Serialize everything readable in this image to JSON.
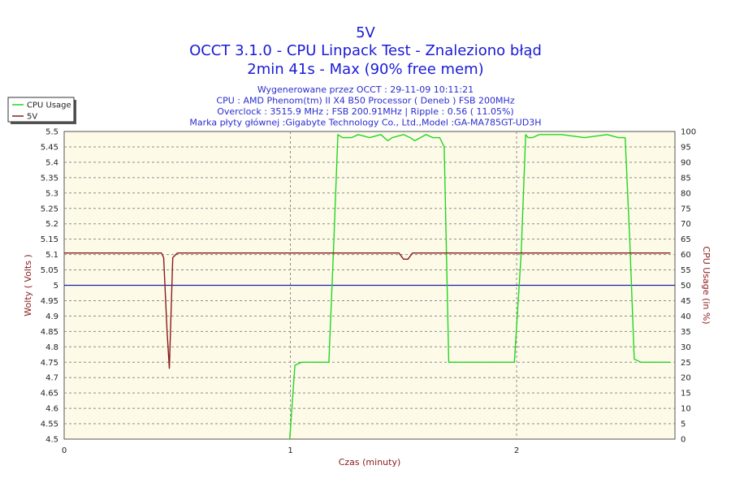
{
  "chart_data": {
    "type": "line",
    "title_lines": [
      "5V",
      "OCCT 3.1.0 - CPU Linpack Test - Znaleziono błąd",
      "2min 41s - Max (90% free mem)"
    ],
    "info_lines": [
      "Wygenerowane przez OCCT : 29-11-09 10:11:21",
      "CPU : AMD Phenom(tm) II X4 B50 Processor ( Deneb ) FSB 200MHz",
      "Overclock : 3515.9 MHz ; FSB 200.91MHz | Ripple : 0.56 ( 11.05%)",
      "Marka płyty głównej :Gigabyte Technology Co., Ltd.,Model :GA-MA785GT-UD3H"
    ],
    "xlabel": "Czas (minuty)",
    "ylabel": "Wolty ( Volts )",
    "y2label": "CPU Usage (in %)",
    "xlim": [
      0,
      2.7
    ],
    "ylim": [
      4.5,
      5.5
    ],
    "y2lim": [
      0,
      100
    ],
    "x_ticks": [
      "0",
      "1",
      "2"
    ],
    "x_tick_values": [
      0,
      1,
      2
    ],
    "y_ticks": [
      "5.5",
      "5.45",
      "5.4",
      "5.35",
      "5.3",
      "5.25",
      "5.2",
      "5.15",
      "5.1",
      "5.05",
      "5",
      "4.95",
      "4.9",
      "4.85",
      "4.8",
      "4.75",
      "4.7",
      "4.65",
      "4.6",
      "4.55",
      "4.5"
    ],
    "y2_ticks": [
      "100",
      "95",
      "90",
      "85",
      "80",
      "75",
      "70",
      "65",
      "60",
      "55",
      "50",
      "45",
      "40",
      "35",
      "30",
      "25",
      "20",
      "15",
      "10",
      "5",
      "0"
    ],
    "reference_line": {
      "y": 5.0,
      "color": "#1f1fb0"
    },
    "grid": true,
    "legend_position": "top-left-outside",
    "legend": [
      {
        "label": "CPU Usage",
        "color": "#22d622"
      },
      {
        "label": "5V",
        "color": "#8b1a1a"
      }
    ],
    "series": [
      {
        "name": "CPU Usage",
        "axis": "right",
        "color": "#22d622",
        "x": [
          0.997,
          1.02,
          1.05,
          1.08,
          1.15,
          1.17,
          1.19,
          1.21,
          1.23,
          1.27,
          1.3,
          1.35,
          1.4,
          1.43,
          1.45,
          1.5,
          1.53,
          1.55,
          1.6,
          1.63,
          1.66,
          1.68,
          1.7,
          1.75,
          1.9,
          1.99,
          2.02,
          2.04,
          2.05,
          2.07,
          2.1,
          2.2,
          2.3,
          2.4,
          2.45,
          2.48,
          2.5,
          2.52,
          2.55,
          2.6,
          2.65,
          2.68
        ],
        "values": [
          0,
          24,
          25,
          25,
          25,
          25,
          60,
          99,
          98,
          98,
          99,
          98,
          99,
          97,
          98,
          99,
          98,
          97,
          99,
          98,
          98,
          95,
          25,
          25,
          25,
          25,
          60,
          99,
          98,
          98,
          99,
          99,
          98,
          99,
          98,
          98,
          65,
          26,
          25,
          25,
          25,
          25
        ]
      },
      {
        "name": "5V",
        "axis": "left",
        "color": "#8b1a1a",
        "x": [
          0,
          0.43,
          0.44,
          0.455,
          0.465,
          0.47,
          0.48,
          0.5,
          0.6,
          0.8,
          1.0,
          1.3,
          1.48,
          1.5,
          1.52,
          1.54,
          1.6,
          2.0,
          2.3,
          2.68
        ],
        "values": [
          5.105,
          5.105,
          5.09,
          4.85,
          4.73,
          4.85,
          5.09,
          5.105,
          5.105,
          5.105,
          5.105,
          5.105,
          5.105,
          5.085,
          5.085,
          5.105,
          5.105,
          5.105,
          5.105,
          5.105
        ]
      }
    ]
  }
}
